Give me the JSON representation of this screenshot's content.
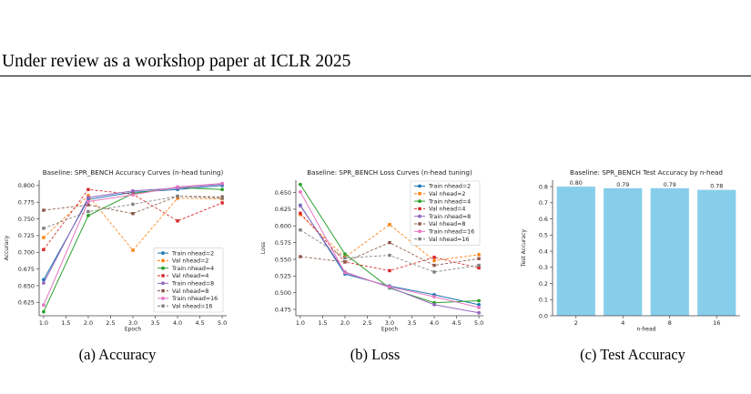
{
  "header": {
    "title": "Under review as a workshop paper at ICLR 2025"
  },
  "captions": [
    "(a)  Accuracy",
    "(b)  Loss",
    "(c)  Test Accuracy"
  ],
  "colors": {
    "nhead2": "#1f77b4",
    "nhead4": "#2ca02c",
    "nhead8": "#9467bd",
    "nhead16": "#e377c2",
    "val2": "#ff7f0e",
    "val4": "#d62728",
    "val8": "#8c564b",
    "val16": "#7f7f7f",
    "bar": "#87ceeb"
  },
  "chart_data": [
    {
      "type": "line",
      "title": "Baseline: SPR_BENCH Accuracy Curves (n-head tuning)",
      "xlabel": "Epoch",
      "ylabel": "Accuracy",
      "xlim": [
        0.9,
        5.1
      ],
      "ylim": [
        0.605,
        0.808
      ],
      "xticks": [
        1.0,
        1.5,
        2.0,
        2.5,
        3.0,
        3.5,
        4.0,
        4.5,
        5.0
      ],
      "yticks": [
        0.625,
        0.65,
        0.675,
        0.7,
        0.725,
        0.75,
        0.775,
        0.8
      ],
      "xtick_decimals": 1,
      "ytick_decimals": 3,
      "legend_position": "lower-right",
      "x": [
        1,
        2,
        3,
        4,
        5
      ],
      "series": [
        {
          "name": "Train nhead=2",
          "values": [
            0.659,
            0.779,
            0.79,
            0.794,
            0.8
          ],
          "color": "#1f77b4",
          "dash": false,
          "marker": "circle"
        },
        {
          "name": "Val nhead=2",
          "values": [
            0.722,
            0.785,
            0.703,
            0.781,
            0.78
          ],
          "color": "#ff7f0e",
          "dash": true,
          "marker": "square"
        },
        {
          "name": "Train nhead=4",
          "values": [
            0.611,
            0.755,
            0.788,
            0.797,
            0.794
          ],
          "color": "#2ca02c",
          "dash": false,
          "marker": "circle"
        },
        {
          "name": "Val nhead=4",
          "values": [
            0.704,
            0.794,
            0.787,
            0.747,
            0.774
          ],
          "color": "#d62728",
          "dash": true,
          "marker": "square"
        },
        {
          "name": "Train nhead=8",
          "values": [
            0.654,
            0.782,
            0.792,
            0.796,
            0.802
          ],
          "color": "#9467bd",
          "dash": false,
          "marker": "circle"
        },
        {
          "name": "Val nhead=8",
          "values": [
            0.763,
            0.771,
            0.758,
            0.784,
            0.783
          ],
          "color": "#8c564b",
          "dash": true,
          "marker": "square"
        },
        {
          "name": "Train nhead=16",
          "values": [
            0.621,
            0.776,
            0.786,
            0.798,
            0.803
          ],
          "color": "#e377c2",
          "dash": false,
          "marker": "circle"
        },
        {
          "name": "Val nhead=16",
          "values": [
            0.736,
            0.761,
            0.772,
            0.784,
            0.781
          ],
          "color": "#7f7f7f",
          "dash": true,
          "marker": "square"
        }
      ]
    },
    {
      "type": "line",
      "title": "Baseline: SPR_BENCH Loss Curves (n-head tuning)",
      "xlabel": "Epoch",
      "ylabel": "Loss",
      "xlim": [
        0.9,
        5.1
      ],
      "ylim": [
        0.4655,
        0.6685
      ],
      "xticks": [
        1.0,
        1.5,
        2.0,
        2.5,
        3.0,
        3.5,
        4.0,
        4.5,
        5.0
      ],
      "yticks": [
        0.475,
        0.5,
        0.525,
        0.55,
        0.575,
        0.6,
        0.625,
        0.65
      ],
      "xtick_decimals": 1,
      "ytick_decimals": 3,
      "legend_position": "upper-right",
      "x": [
        1,
        2,
        3,
        4,
        5
      ],
      "series": [
        {
          "name": "Train nhead=2",
          "values": [
            0.631,
            0.528,
            0.51,
            0.497,
            0.482
          ],
          "color": "#1f77b4",
          "dash": false,
          "marker": "circle"
        },
        {
          "name": "Val nhead=2",
          "values": [
            0.617,
            0.553,
            0.602,
            0.548,
            0.557
          ],
          "color": "#ff7f0e",
          "dash": true,
          "marker": "square"
        },
        {
          "name": "Train nhead=4",
          "values": [
            0.662,
            0.558,
            0.507,
            0.485,
            0.488
          ],
          "color": "#2ca02c",
          "dash": false,
          "marker": "circle"
        },
        {
          "name": "Val nhead=4",
          "values": [
            0.619,
            0.546,
            0.533,
            0.553,
            0.537
          ],
          "color": "#d62728",
          "dash": true,
          "marker": "square"
        },
        {
          "name": "Train nhead=8",
          "values": [
            0.63,
            0.531,
            0.508,
            0.482,
            0.47
          ],
          "color": "#9467bd",
          "dash": false,
          "marker": "circle"
        },
        {
          "name": "Val nhead=8",
          "values": [
            0.554,
            0.546,
            0.575,
            0.541,
            0.551
          ],
          "color": "#8c564b",
          "dash": true,
          "marker": "square"
        },
        {
          "name": "Train nhead=16",
          "values": [
            0.651,
            0.53,
            0.509,
            0.494,
            0.478
          ],
          "color": "#e377c2",
          "dash": false,
          "marker": "circle"
        },
        {
          "name": "Val nhead=16",
          "values": [
            0.594,
            0.552,
            0.556,
            0.531,
            0.541
          ],
          "color": "#7f7f7f",
          "dash": true,
          "marker": "square"
        }
      ]
    },
    {
      "type": "bar",
      "title": "Baseline: SPR_BENCH Test Accuracy by n-head",
      "xlabel": "n-head",
      "ylabel": "Test Accuracy",
      "ylim": [
        0,
        0.84
      ],
      "yticks": [
        0.0,
        0.1,
        0.2,
        0.3,
        0.4,
        0.5,
        0.6,
        0.7,
        0.8
      ],
      "ytick_decimals": 1,
      "categories": [
        "2",
        "4",
        "8",
        "16"
      ],
      "values": [
        0.8,
        0.79,
        0.79,
        0.78
      ],
      "data_labels": [
        "0.80",
        "0.79",
        "0.79",
        "0.78"
      ],
      "color": "#87ceeb"
    }
  ]
}
